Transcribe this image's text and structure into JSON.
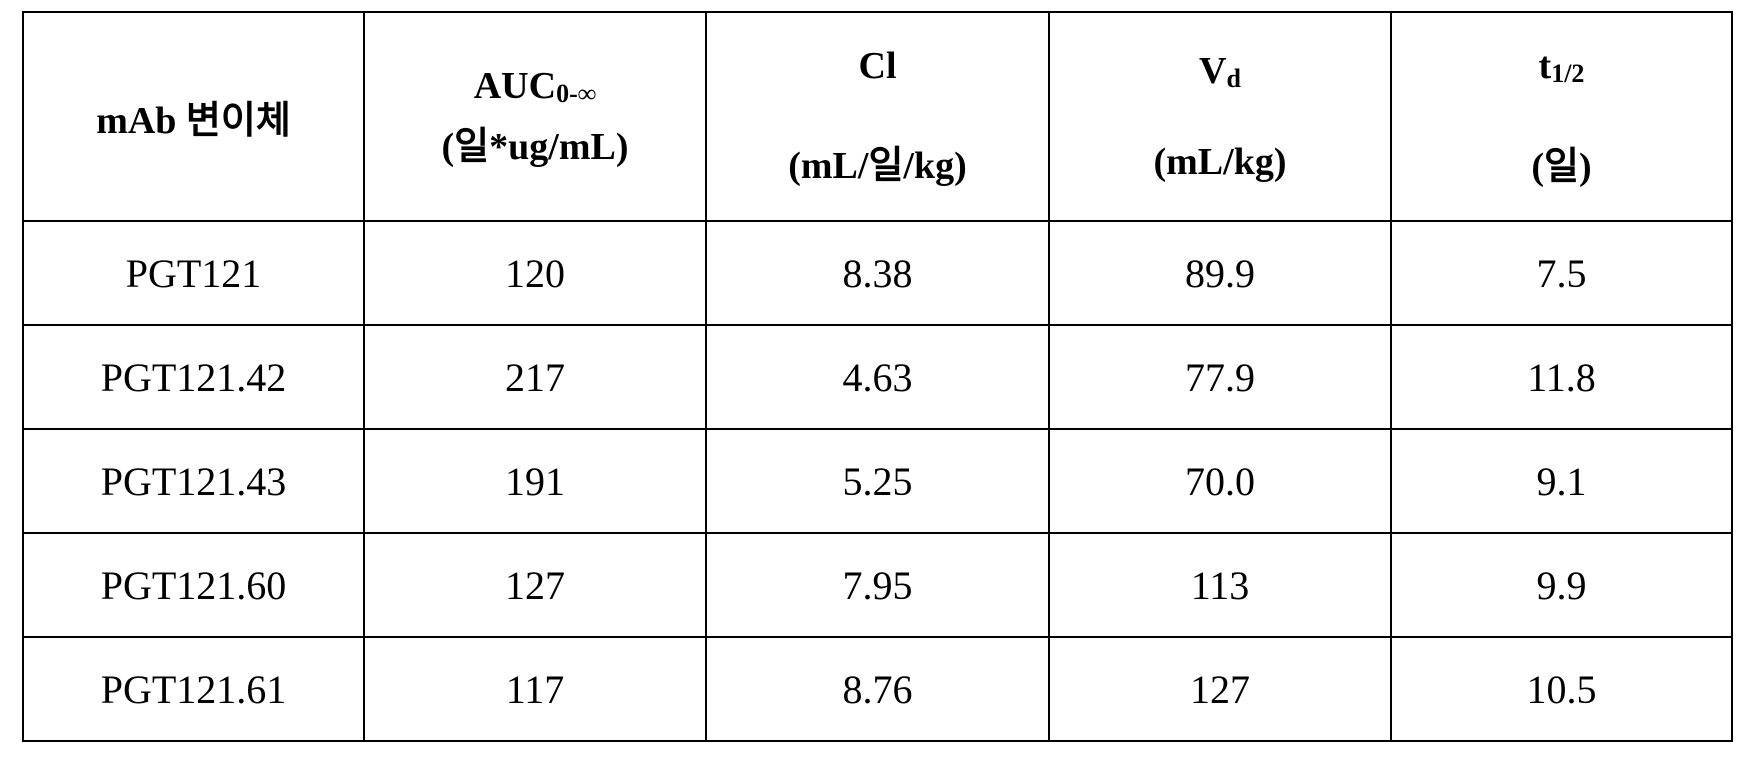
{
  "table": {
    "headers": [
      {
        "main": "mAb 변이체"
      },
      {
        "main": "AUC",
        "sub": "0-∞",
        "unit": "(일*ug/mL)"
      },
      {
        "main": "Cl",
        "unit": "(mL/일/kg)"
      },
      {
        "main": "V",
        "sub": "d",
        "unit": "(mL/kg)"
      },
      {
        "main": "t",
        "sub": "1/2",
        "unit": "(일)"
      }
    ],
    "rows": [
      [
        "PGT121",
        "120",
        "8.38",
        "89.9",
        "7.5"
      ],
      [
        "PGT121.42",
        "217",
        "4.63",
        "77.9",
        "11.8"
      ],
      [
        "PGT121.43",
        "191",
        "5.25",
        "70.0",
        "9.1"
      ],
      [
        "PGT121.60",
        "127",
        "7.95",
        "113",
        "9.9"
      ],
      [
        "PGT121.61",
        "117",
        "8.76",
        "127",
        "10.5"
      ]
    ]
  }
}
